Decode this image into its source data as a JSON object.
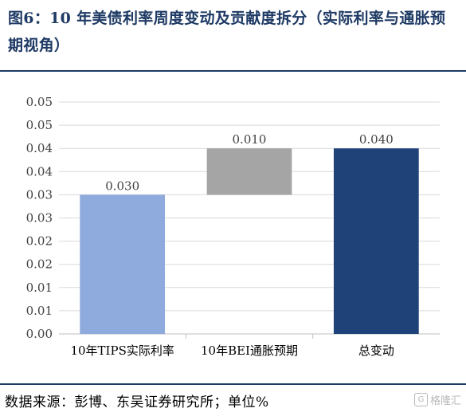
{
  "title": "图6：10 年美债利率周度变动及贡献度拆分（实际利率与通胀预期视角）",
  "source": "数据来源：彭博、东吴证券研究所；单位%",
  "watermark": "格隆汇",
  "colors": {
    "title": "#1e3a64",
    "grid": "#d9d9d9",
    "axis": "#bfbfbf",
    "text": "#404040"
  },
  "chart_data": {
    "type": "bar",
    "subtype": "waterfall",
    "categories": [
      "10年TIPS实际利率",
      "10年BEI通胀预期",
      "总变动"
    ],
    "values": [
      0.03,
      0.01,
      0.04
    ],
    "bases": [
      0,
      0.03,
      0
    ],
    "data_labels": [
      "0.030",
      "0.010",
      "0.040"
    ],
    "colors": [
      "#8faadc",
      "#a5a5a5",
      "#1f4279"
    ],
    "y_ticks": [
      "0.00",
      "0.01",
      "0.01",
      "0.02",
      "0.02",
      "0.03",
      "0.03",
      "0.04",
      "0.04",
      "0.05",
      "0.05"
    ],
    "ylim": [
      0,
      0.05
    ],
    "grid": true,
    "legend": "none"
  }
}
